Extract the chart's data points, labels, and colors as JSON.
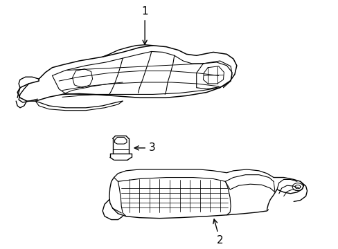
{
  "background_color": "#ffffff",
  "line_color": "#000000",
  "line_width": 1.0,
  "label_color": "#000000",
  "figsize": [
    4.89,
    3.6
  ],
  "dpi": 100
}
